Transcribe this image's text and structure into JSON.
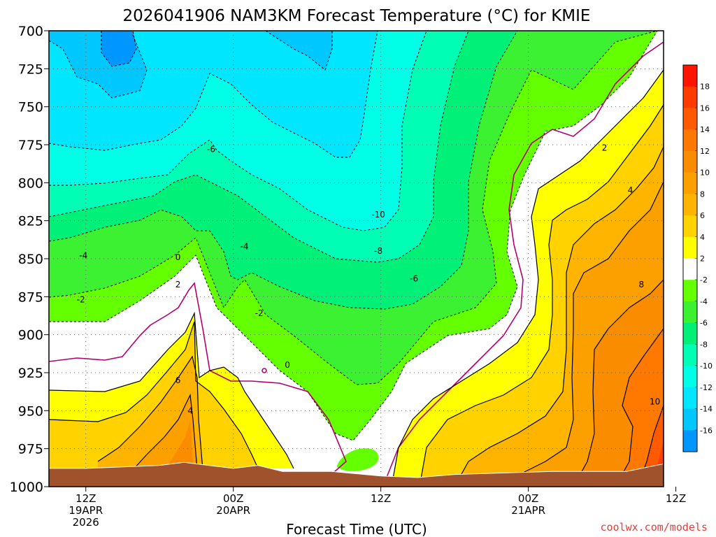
{
  "chart_data": {
    "type": "heatmap",
    "title": "2026041906 NAM3KM Forecast Temperature (°C) for KMIE",
    "xlabel": "Forecast Time (UTC)",
    "ylabel": "",
    "credit": "coolwx.com/models",
    "x_range_hours": [
      -3,
      47
    ],
    "y_range_hpa": [
      700,
      1000
    ],
    "y_ticks": [
      {
        "value": 700,
        "label": "700"
      },
      {
        "value": 725,
        "label": "725"
      },
      {
        "value": 750,
        "label": "750"
      },
      {
        "value": 775,
        "label": "775"
      },
      {
        "value": 800,
        "label": "800"
      },
      {
        "value": 825,
        "label": "825"
      },
      {
        "value": 850,
        "label": "850"
      },
      {
        "value": 875,
        "label": "875"
      },
      {
        "value": 900,
        "label": "900"
      },
      {
        "value": 925,
        "label": "925"
      },
      {
        "value": 950,
        "label": "950"
      },
      {
        "value": 975,
        "label": "975"
      },
      {
        "value": 1000,
        "label": "1000"
      }
    ],
    "x_ticks": [
      {
        "hour": 0,
        "lines": [
          "12Z",
          "19APR",
          "2026"
        ]
      },
      {
        "hour": 12,
        "lines": [
          "00Z",
          "20APR"
        ]
      },
      {
        "hour": 24,
        "lines": [
          "12Z"
        ]
      },
      {
        "hour": 36,
        "lines": [
          "00Z",
          "21APR"
        ]
      },
      {
        "hour": 48,
        "lines": [
          "12Z"
        ]
      }
    ],
    "colorbar": [
      {
        "from": 18,
        "to": 20,
        "color": "#ff1400",
        "label": "18"
      },
      {
        "from": 16,
        "to": 18,
        "color": "#ff3c00",
        "label": "16"
      },
      {
        "from": 14,
        "to": 16,
        "color": "#ff5a00",
        "label": "14"
      },
      {
        "from": 12,
        "to": 14,
        "color": "#ff7800",
        "label": "12"
      },
      {
        "from": 10,
        "to": 12,
        "color": "#fa8c00",
        "label": "10"
      },
      {
        "from": 8,
        "to": 10,
        "color": "#fca000",
        "label": "8"
      },
      {
        "from": 6,
        "to": 8,
        "color": "#ffb400",
        "label": "6"
      },
      {
        "from": 4,
        "to": 6,
        "color": "#ffd200",
        "label": "4"
      },
      {
        "from": 2,
        "to": 4,
        "color": "#ffff00",
        "label": "2"
      },
      {
        "from": -2,
        "to": 2,
        "color": "#ffffff",
        "label": "-2"
      },
      {
        "from": -4,
        "to": -2,
        "color": "#64ff00",
        "label": "-4"
      },
      {
        "from": -6,
        "to": -4,
        "color": "#3cf032",
        "label": "-6"
      },
      {
        "from": -8,
        "to": -6,
        "color": "#00f078",
        "label": "-8"
      },
      {
        "from": -10,
        "to": -8,
        "color": "#00ffb4",
        "label": "-10"
      },
      {
        "from": -12,
        "to": -10,
        "color": "#00ffe6",
        "label": "-12"
      },
      {
        "from": -14,
        "to": -12,
        "color": "#00e6ff",
        "label": "-14"
      },
      {
        "from": -16,
        "to": -14,
        "color": "#00c8ff",
        "label": "-16"
      },
      {
        "from": -18,
        "to": -16,
        "color": "#0096ff",
        "label": ""
      }
    ],
    "contour_labels": [
      {
        "hour": 10.2,
        "hpa": 778,
        "value": "-6"
      },
      {
        "hour": 23.8,
        "hpa": 821,
        "value": "-10"
      },
      {
        "hour": 23.8,
        "hpa": 845,
        "value": "-8"
      },
      {
        "hour": 26.7,
        "hpa": 863,
        "value": "-6"
      },
      {
        "hour": 12.9,
        "hpa": 842,
        "value": "-4"
      },
      {
        "hour": -0.2,
        "hpa": 848,
        "value": "-4"
      },
      {
        "hour": -0.4,
        "hpa": 877,
        "value": "-2"
      },
      {
        "hour": 14.1,
        "hpa": 886,
        "value": "-2"
      },
      {
        "hour": 7.5,
        "hpa": 849,
        "value": "0"
      },
      {
        "hour": 16.4,
        "hpa": 920,
        "value": "0"
      },
      {
        "hour": 7.5,
        "hpa": 867,
        "value": "2"
      },
      {
        "hour": 7.5,
        "hpa": 930,
        "value": "6"
      },
      {
        "hour": 8.5,
        "hpa": 950,
        "value": "4"
      },
      {
        "hour": 42.2,
        "hpa": 777,
        "value": "2"
      },
      {
        "hour": 44.3,
        "hpa": 805,
        "value": "4"
      },
      {
        "hour": 45.2,
        "hpa": 867,
        "value": "8"
      },
      {
        "hour": 46.3,
        "hpa": 944,
        "value": "10"
      }
    ],
    "terrain_hpa_by_hour": [
      {
        "hour": -3,
        "hpa": 988
      },
      {
        "hour": 0,
        "hpa": 988
      },
      {
        "hour": 3,
        "hpa": 987
      },
      {
        "hour": 6,
        "hpa": 986
      },
      {
        "hour": 8,
        "hpa": 984
      },
      {
        "hour": 10,
        "hpa": 986
      },
      {
        "hour": 12,
        "hpa": 988
      },
      {
        "hour": 14,
        "hpa": 986
      },
      {
        "hour": 16,
        "hpa": 990
      },
      {
        "hour": 20,
        "hpa": 990
      },
      {
        "hour": 24,
        "hpa": 993
      },
      {
        "hour": 27,
        "hpa": 994
      },
      {
        "hour": 30,
        "hpa": 992
      },
      {
        "hour": 34,
        "hpa": 991
      },
      {
        "hour": 38,
        "hpa": 990
      },
      {
        "hour": 42,
        "hpa": 990
      },
      {
        "hour": 44,
        "hpa": 990
      },
      {
        "hour": 47,
        "hpa": 985
      }
    ],
    "grid": true,
    "colors": {
      "terrain": "#a0522d",
      "freezing_line": "#b4006e",
      "credit": "#e63c3c"
    }
  }
}
